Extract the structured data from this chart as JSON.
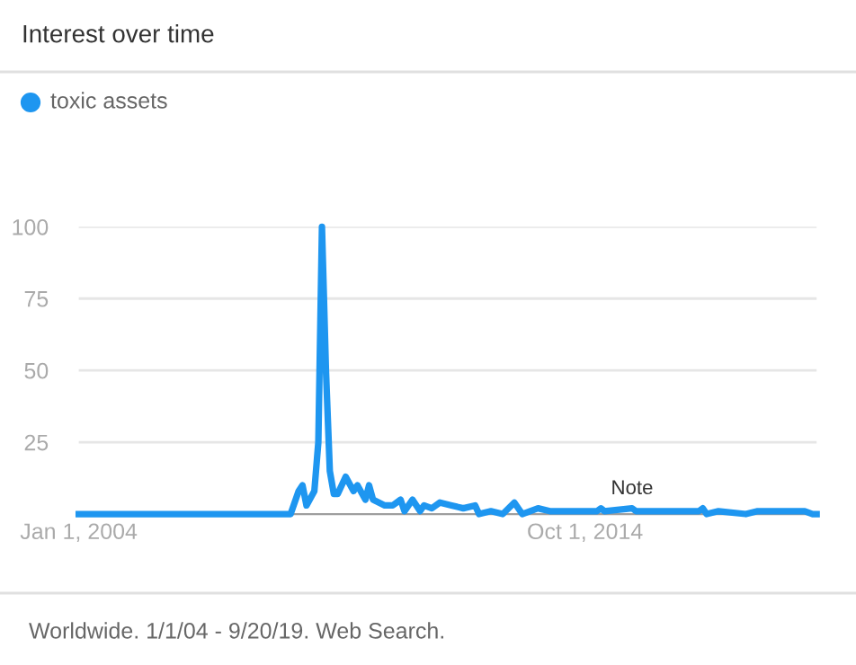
{
  "chart_data": {
    "type": "line",
    "title": "Interest over time",
    "x": [
      "2004-01",
      "2008-07",
      "2008-09",
      "2008-10",
      "2008-11",
      "2009-01",
      "2009-02",
      "2009-03",
      "2009-04",
      "2009-05",
      "2009-06",
      "2009-07",
      "2009-09",
      "2009-11",
      "2009-12",
      "2010-02",
      "2010-03",
      "2010-04",
      "2010-07",
      "2010-09",
      "2010-11",
      "2010-12",
      "2011-02",
      "2011-04",
      "2011-05",
      "2011-07",
      "2011-09",
      "2011-12",
      "2012-03",
      "2012-06",
      "2012-07",
      "2012-10",
      "2013-01",
      "2013-04",
      "2013-06",
      "2013-10",
      "2014-01",
      "2015-01",
      "2015-02",
      "2015-03",
      "2015-10",
      "2015-11",
      "2017-03",
      "2017-04",
      "2017-05",
      "2017-08",
      "2018-03",
      "2018-06",
      "2018-12",
      "2019-06",
      "2019-08",
      "2019-09"
    ],
    "series": [
      {
        "name": "toxic assets",
        "color": "#1e96f0",
        "values": [
          0,
          0,
          8,
          10,
          3,
          8,
          25,
          100,
          50,
          15,
          7,
          7,
          13,
          8,
          10,
          5,
          10,
          5,
          3,
          3,
          5,
          1,
          5,
          1,
          3,
          2,
          4,
          3,
          2,
          3,
          0,
          1,
          0,
          4,
          0,
          2,
          1,
          1,
          2,
          1,
          2,
          1,
          1,
          2,
          0,
          1,
          0,
          1,
          1,
          1,
          0,
          0
        ]
      }
    ],
    "xlim": [
      "2004-01",
      "2019-09"
    ],
    "xticks": [
      {
        "value": "2004-01-01",
        "label": "Jan 1, 2004"
      },
      {
        "value": "2014-10-01",
        "label": "Oct 1, 2014"
      }
    ],
    "ylim": [
      0,
      100
    ],
    "yticks": [
      25,
      50,
      75,
      100
    ],
    "grid": "y",
    "legend": "top left",
    "marker": "none",
    "line_style": "solid",
    "annotations": [
      {
        "text": "Note",
        "x": "2015-10",
        "y": 2
      },
      "Worldwide. 1/1/04 - 9/20/19. Web Search."
    ]
  }
}
